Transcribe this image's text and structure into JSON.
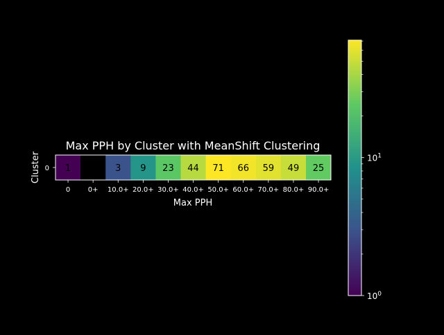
{
  "chart_data": {
    "type": "heatmap",
    "title": "Max PPH by Cluster with MeanShift Clustering",
    "xlabel": "Max PPH",
    "ylabel": "Cluster",
    "x_categories": [
      "0",
      "0+",
      "10.0+",
      "20.0+",
      "30.0+",
      "40.0+",
      "50.0+",
      "60.0+",
      "70.0+",
      "80.0+",
      "90.0+"
    ],
    "y_categories": [
      "0"
    ],
    "values": [
      [
        1,
        null,
        3,
        9,
        23,
        44,
        71,
        66,
        59,
        49,
        25
      ]
    ],
    "cell_labels": [
      "1",
      "",
      "3",
      "9",
      "23",
      "44",
      "71",
      "66",
      "59",
      "49",
      "25"
    ],
    "colorbar": {
      "scale": "log",
      "range": [
        1,
        71
      ],
      "colormap": "viridis",
      "tick_labels": [
        "10^0",
        "10^1"
      ]
    },
    "missing_color": "#000000",
    "background": "#000000",
    "text_color": "#ffffff"
  }
}
